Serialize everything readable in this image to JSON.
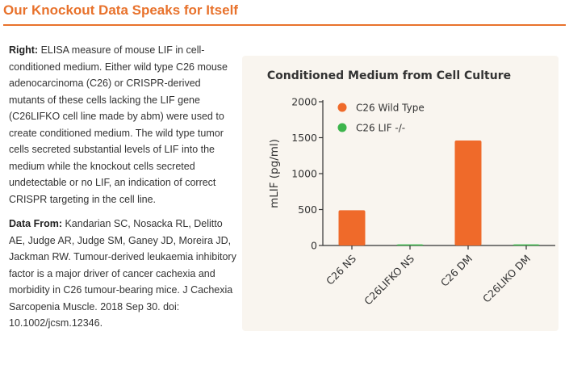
{
  "header": {
    "title": "Our Knockout Data Speaks for Itself"
  },
  "text": {
    "right_label": "Right:",
    "right_body": " ELISA measure of mouse LIF in cell-conditioned medium. Either wild type C26 mouse adenocarcinoma (C26) or CRISPR-derived mutants of these cells lacking the LIF gene (C26LIFKO cell line made by abm) were used to create conditioned medium. The wild type tumor cells secreted substantial levels of LIF into the medium while the knockout cells secreted undetectable or no LIF, an indication of correct CRISPR targeting in the cell line.",
    "data_label": "Data From:",
    "data_body": " Kandarian SC, Nosacka RL, Delitto AE, Judge AR, Judge SM, Ganey JD, Moreira JD, Jackman RW. Tumour-derived leukaemia inhibitory factor is a major driver of cancer cachexia and morbidity in C26 tumour-bearing mice. J Cachexia Sarcopenia Muscle. 2018 Sep 30. doi: 10.1002/jcsm.12346."
  },
  "colors": {
    "accent": "#e8722c",
    "wild_type": "#ef6a2a",
    "knockout": "#3cb44b",
    "panel": "#f9f5ef"
  },
  "chart_data": {
    "type": "bar",
    "title": "Conditioned Medium from Cell Culture",
    "xlabel": "",
    "ylabel": "mLIF (pg/ml)",
    "ylim": [
      0,
      2000
    ],
    "yticks": [
      "0",
      "500",
      "1000",
      "1500",
      "2000"
    ],
    "grid": false,
    "legend_position": "top-left",
    "categories": [
      "C26 NS",
      "C26LIFKO NS",
      "C26 DM",
      "C26LIKO DM"
    ],
    "series": [
      {
        "name": "C26 Wild Type",
        "color": "#ef6a2a",
        "values": [
          490,
          null,
          1460,
          null
        ]
      },
      {
        "name": "C26 LIF -/-",
        "color": "#3cb44b",
        "values": [
          null,
          15,
          null,
          15
        ]
      }
    ]
  }
}
